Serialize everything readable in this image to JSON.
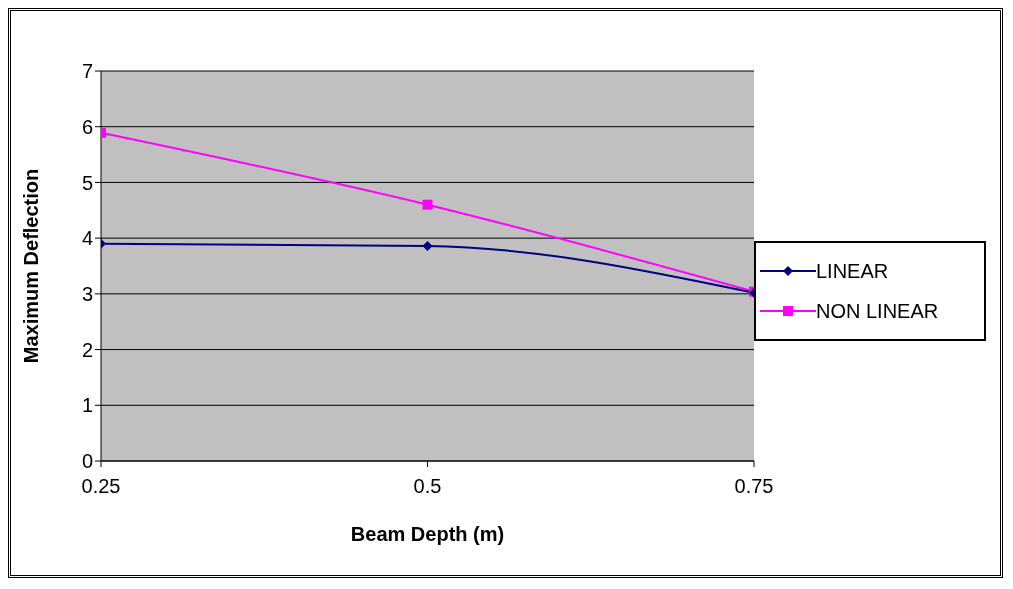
{
  "chart_data": {
    "type": "line",
    "xlabel": "Beam Depth (m)",
    "ylabel": "Maximum Deflection",
    "x": [
      0.25,
      0.5,
      0.75
    ],
    "series": [
      {
        "name": "LINEAR",
        "color": "#000080",
        "marker": "diamond",
        "values": [
          3.9,
          3.86,
          3.02
        ]
      },
      {
        "name": "NON LINEAR",
        "color": "#ff00ff",
        "marker": "square",
        "values": [
          5.89,
          4.6,
          3.04
        ]
      }
    ],
    "xlim": [
      0.25,
      0.75
    ],
    "xticks": [
      0.25,
      0.5,
      0.75
    ],
    "ylim": [
      0,
      7
    ],
    "yticks": [
      0,
      1,
      2,
      3,
      4,
      5,
      6,
      7
    ],
    "grid": "y",
    "legend": "right"
  }
}
